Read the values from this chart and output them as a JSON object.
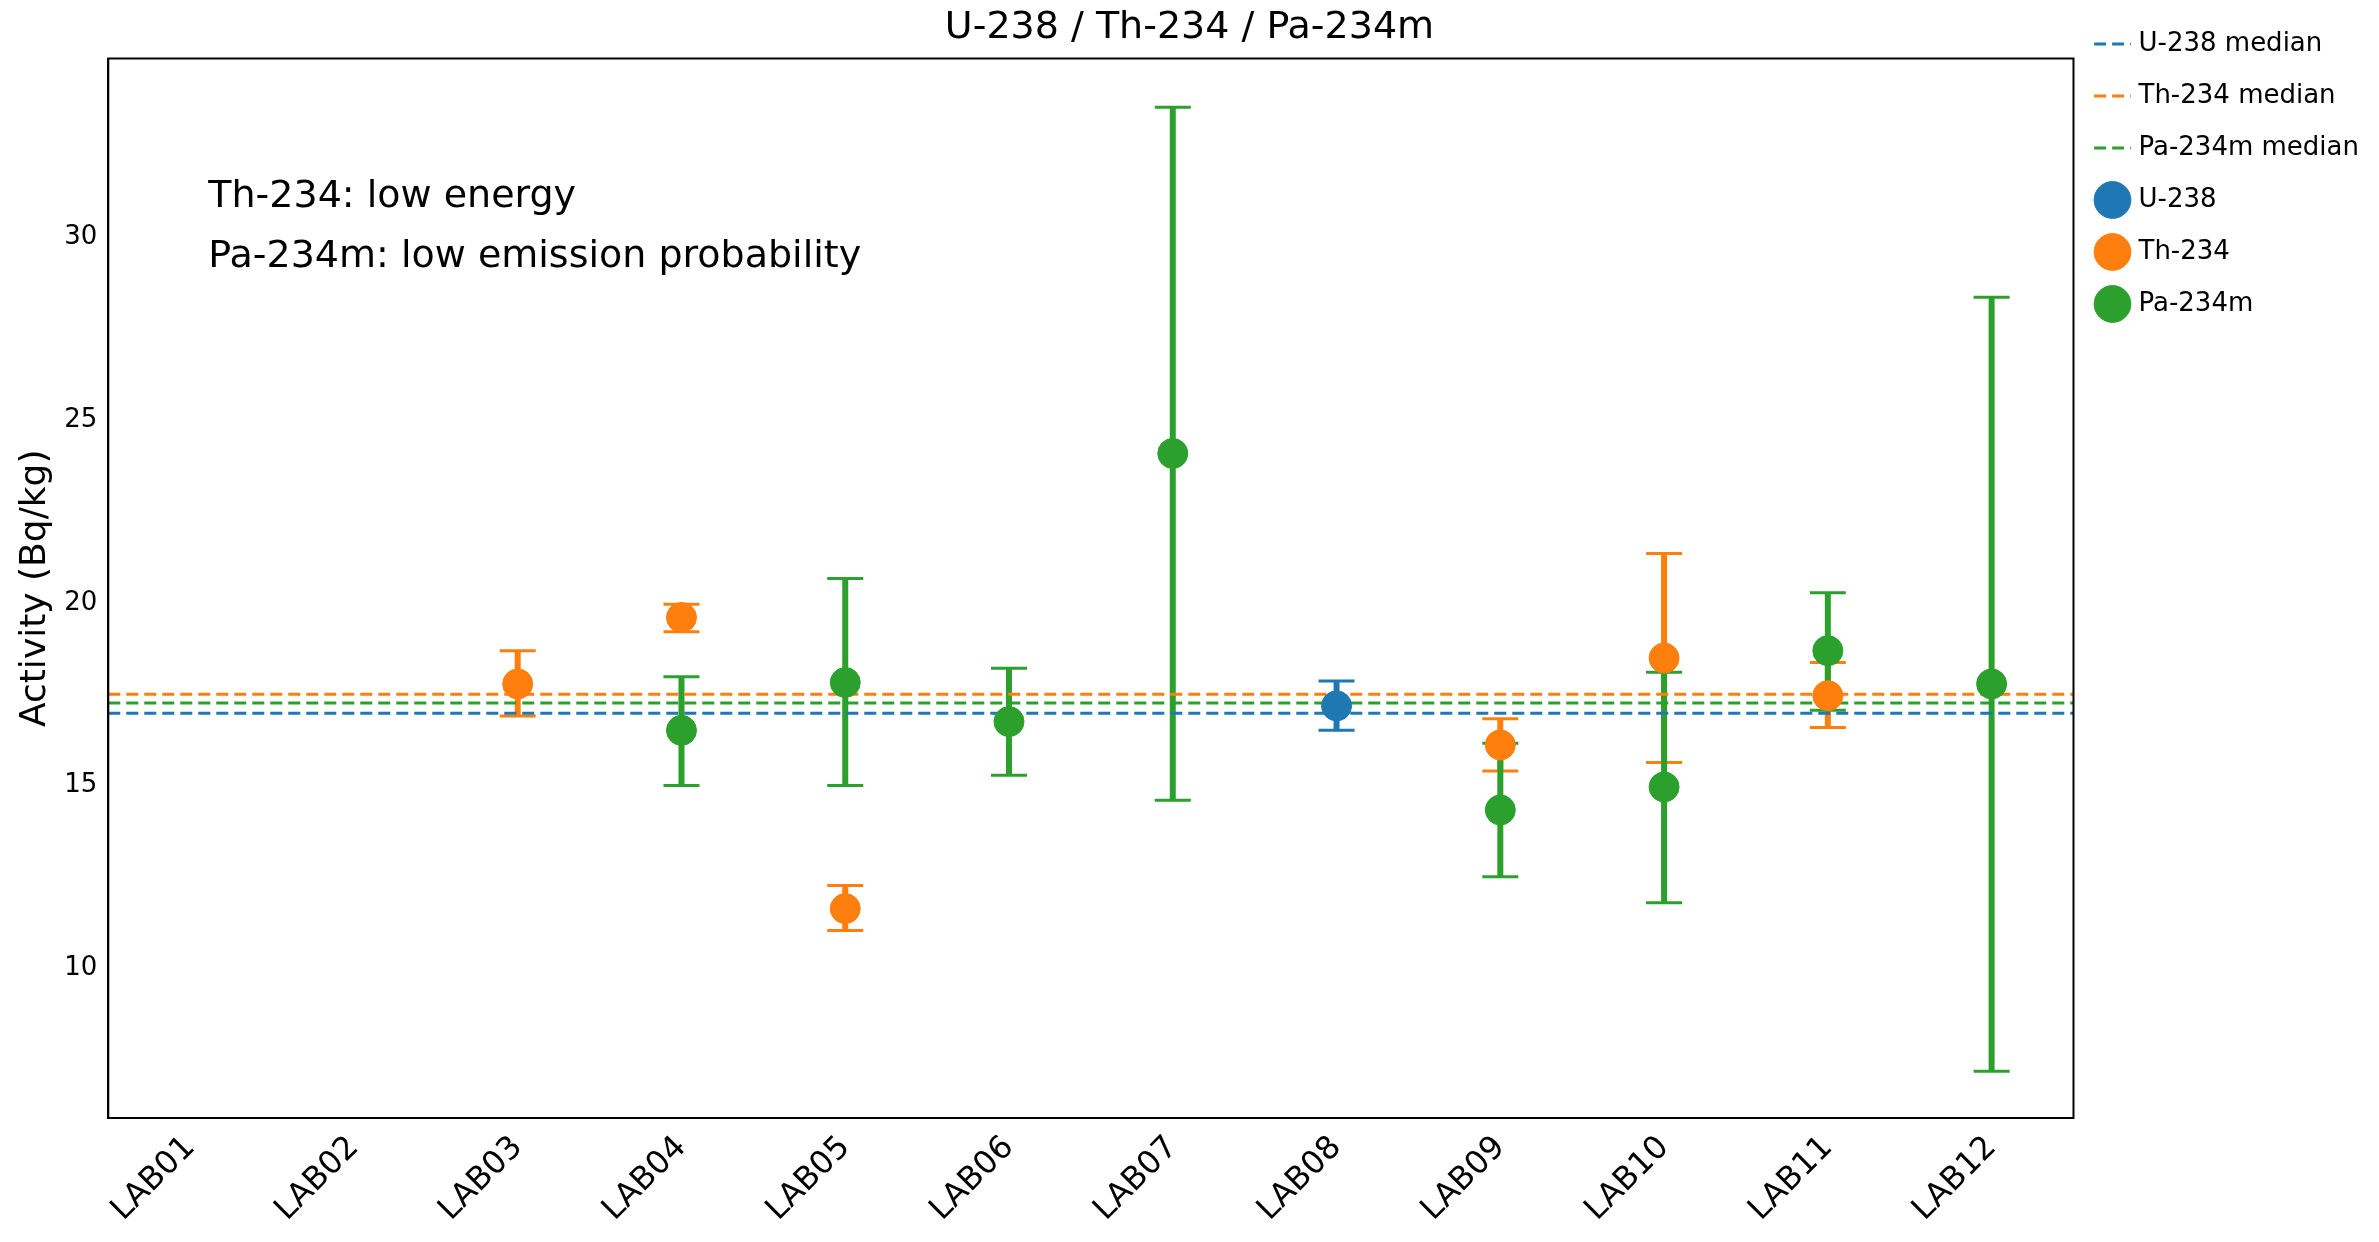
{
  "chart_data": {
    "type": "scatter",
    "title": "U-238 / Th-234 / Pa-234m",
    "ylabel": "Activity (Bq/kg)",
    "categories": [
      "LAB01",
      "LAB02",
      "LAB03",
      "LAB04",
      "LAB05",
      "LAB06",
      "LAB07",
      "LAB08",
      "LAB09",
      "LAB10",
      "LAB11",
      "LAB12"
    ],
    "series": [
      {
        "name": "U-238",
        "color": "#1f77b4",
        "values": [
          null,
          null,
          null,
          null,
          null,
          null,
          null,
          17.18,
          null,
          null,
          null,
          null
        ],
        "errors": [
          null,
          null,
          null,
          null,
          null,
          null,
          null,
          [
            16.51,
            17.86
          ],
          null,
          null,
          null,
          null
        ]
      },
      {
        "name": "Th-234",
        "color": "#ff7f0e",
        "values": [
          null,
          null,
          17.78,
          19.6,
          11.63,
          null,
          null,
          null,
          16.11,
          18.49,
          17.46,
          null
        ],
        "errors": [
          null,
          null,
          [
            16.9,
            18.69
          ],
          [
            19.21,
            19.96
          ],
          [
            11.03,
            12.26
          ],
          null,
          null,
          null,
          [
            15.4,
            16.83
          ],
          [
            15.63,
            21.35
          ],
          [
            16.59,
            18.37
          ],
          null
        ]
      },
      {
        "name": "Pa-234m",
        "color": "#2ca02c",
        "values": [
          null,
          null,
          null,
          16.51,
          17.82,
          16.75,
          24.09,
          null,
          14.33,
          14.96,
          18.69,
          17.78
        ],
        "errors": [
          null,
          null,
          null,
          [
            15.0,
            17.98
          ],
          [
            15.0,
            20.67
          ],
          [
            15.28,
            18.21
          ],
          [
            14.6,
            33.57
          ],
          null,
          1.83,
          [
            11.79,
            18.1
          ],
          [
            17.06,
            20.28
          ],
          [
            7.18,
            28.37
          ]
        ]
      }
    ],
    "ref_lines": [
      {
        "axis": "y",
        "value": 16.98,
        "label": "U-238 median",
        "color": "#1f77b4",
        "line_style": "dashed"
      },
      {
        "axis": "y",
        "value": 17.5,
        "label": "Th-234 median",
        "color": "#ff7f0e",
        "line_style": "dashed"
      },
      {
        "axis": "y",
        "value": 17.26,
        "label": "Pa-234m median",
        "color": "#2ca02c",
        "line_style": "dashed"
      }
    ],
    "annotations": [
      "Th-234: low energy",
      "Pa-234m: low emission probability"
    ],
    "ylim": [
      5.9,
      34.9
    ],
    "yticks": [
      10,
      15,
      20,
      25,
      30
    ],
    "grid": false,
    "legend": "top right",
    "marker": "circle"
  }
}
